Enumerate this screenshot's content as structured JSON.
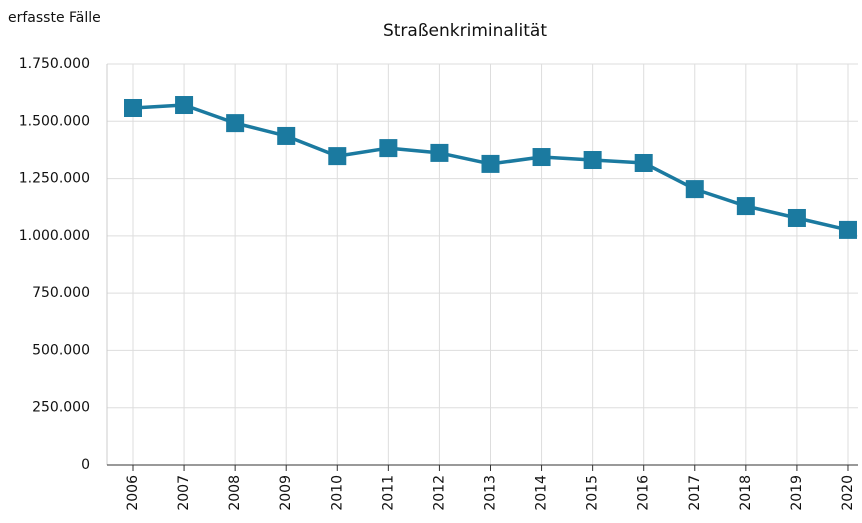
{
  "chart_data": {
    "type": "line",
    "title": "Straßenkriminalität",
    "y_label": "erfasste Fälle",
    "categories": [
      "2006",
      "2007",
      "2008",
      "2009",
      "2010",
      "2011",
      "2012",
      "2013",
      "2014",
      "2015",
      "2016",
      "2017",
      "2018",
      "2019",
      "2020"
    ],
    "series": [
      {
        "name": "Straßenkriminalität",
        "color": "#1b7aa0",
        "values": [
          1558000,
          1571000,
          1492000,
          1436000,
          1348000,
          1383000,
          1362000,
          1314000,
          1344000,
          1331000,
          1318000,
          1204000,
          1130000,
          1078000,
          1026000
        ]
      }
    ],
    "ylim": [
      0,
      1750000
    ],
    "yticks": [
      0,
      {
        "value": 250000,
        "label": "250.000"
      },
      {
        "value": 500000,
        "label": "500.000"
      },
      {
        "value": 750000,
        "label": "750.000"
      },
      {
        "value": 1000000,
        "label": "1.000.000"
      },
      {
        "value": 1250000,
        "label": "1.250.000"
      },
      {
        "value": 1500000,
        "label": "1.500.000"
      },
      {
        "value": 1750000,
        "label": "1.750.000"
      }
    ],
    "grid": true
  }
}
